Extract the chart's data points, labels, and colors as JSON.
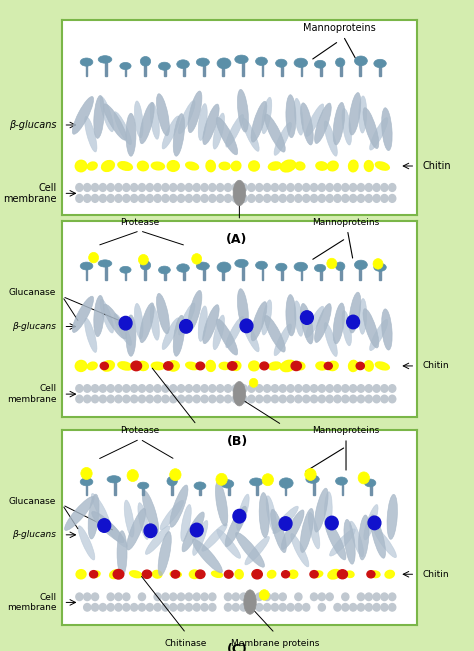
{
  "bg_color": "#d4edaf",
  "panel_bg": "#ffffff",
  "border_color": "#7ab648",
  "fig_width": 4.74,
  "fig_height": 6.51,
  "panels": [
    "A",
    "B",
    "C"
  ],
  "panel_labels": [
    "(A)",
    "(B)",
    "(C)"
  ],
  "colors": {
    "mannoprotein_circle": "#5b8fa8",
    "glucan_fiber": "#a8b8c8",
    "chitin_yellow": "#ffff00",
    "membrane_dot": "#c0c8d0",
    "membrane_protein": "#909090",
    "protease_yellow": "#ffff00",
    "glucanase_blue": "#1111cc",
    "chitinase_red": "#cc1111",
    "text_color": "#000000"
  },
  "labels_A": {
    "mannoproteins": "Mannoproteins",
    "beta_glucans": "β-glucans",
    "chitin": "Chitin",
    "cell_membrane": "Cell\nmembrane",
    "membrane_proteins": "Membrane proteins"
  },
  "labels_BC": {
    "protease": "Protease",
    "glucanase": "Glucanase",
    "beta_glucans": "β-glucans",
    "chitin": "Chitin",
    "cell_membrane": "Cell\nmembrane",
    "chitinase": "Chitinase",
    "membrane_proteins": "Membrane proteins",
    "mannoproteins": "Mannoproteins"
  }
}
